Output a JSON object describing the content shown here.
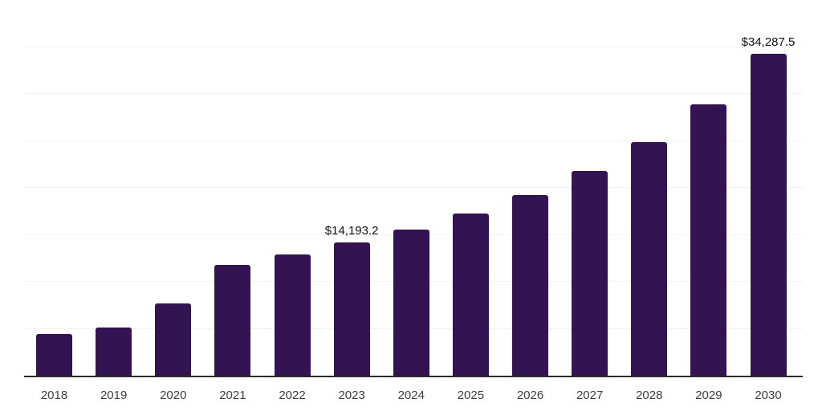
{
  "chart_data": {
    "type": "bar",
    "title": "",
    "xlabel": "",
    "ylabel": "",
    "categories": [
      "2018",
      "2019",
      "2020",
      "2021",
      "2022",
      "2023",
      "2024",
      "2025",
      "2026",
      "2027",
      "2028",
      "2029",
      "2030"
    ],
    "values": [
      4435,
      5120,
      7680,
      11770,
      12880,
      14193.2,
      15520,
      17230,
      19190,
      21830,
      24910,
      28910,
      34287.5
    ],
    "data_labels": [
      null,
      null,
      null,
      null,
      null,
      "$14,193.2",
      null,
      null,
      null,
      null,
      null,
      null,
      "$34,287.5"
    ],
    "ylim": [
      0,
      40000
    ],
    "grid_interval": 5000,
    "grid": true,
    "legend": false,
    "colors": {
      "bar": "#341352",
      "gridline": "#f2f2f2",
      "axis": "#2b2b2b",
      "data_label": "#111111",
      "tick_label": "#3d3d3d",
      "background": "#ffffff"
    }
  }
}
